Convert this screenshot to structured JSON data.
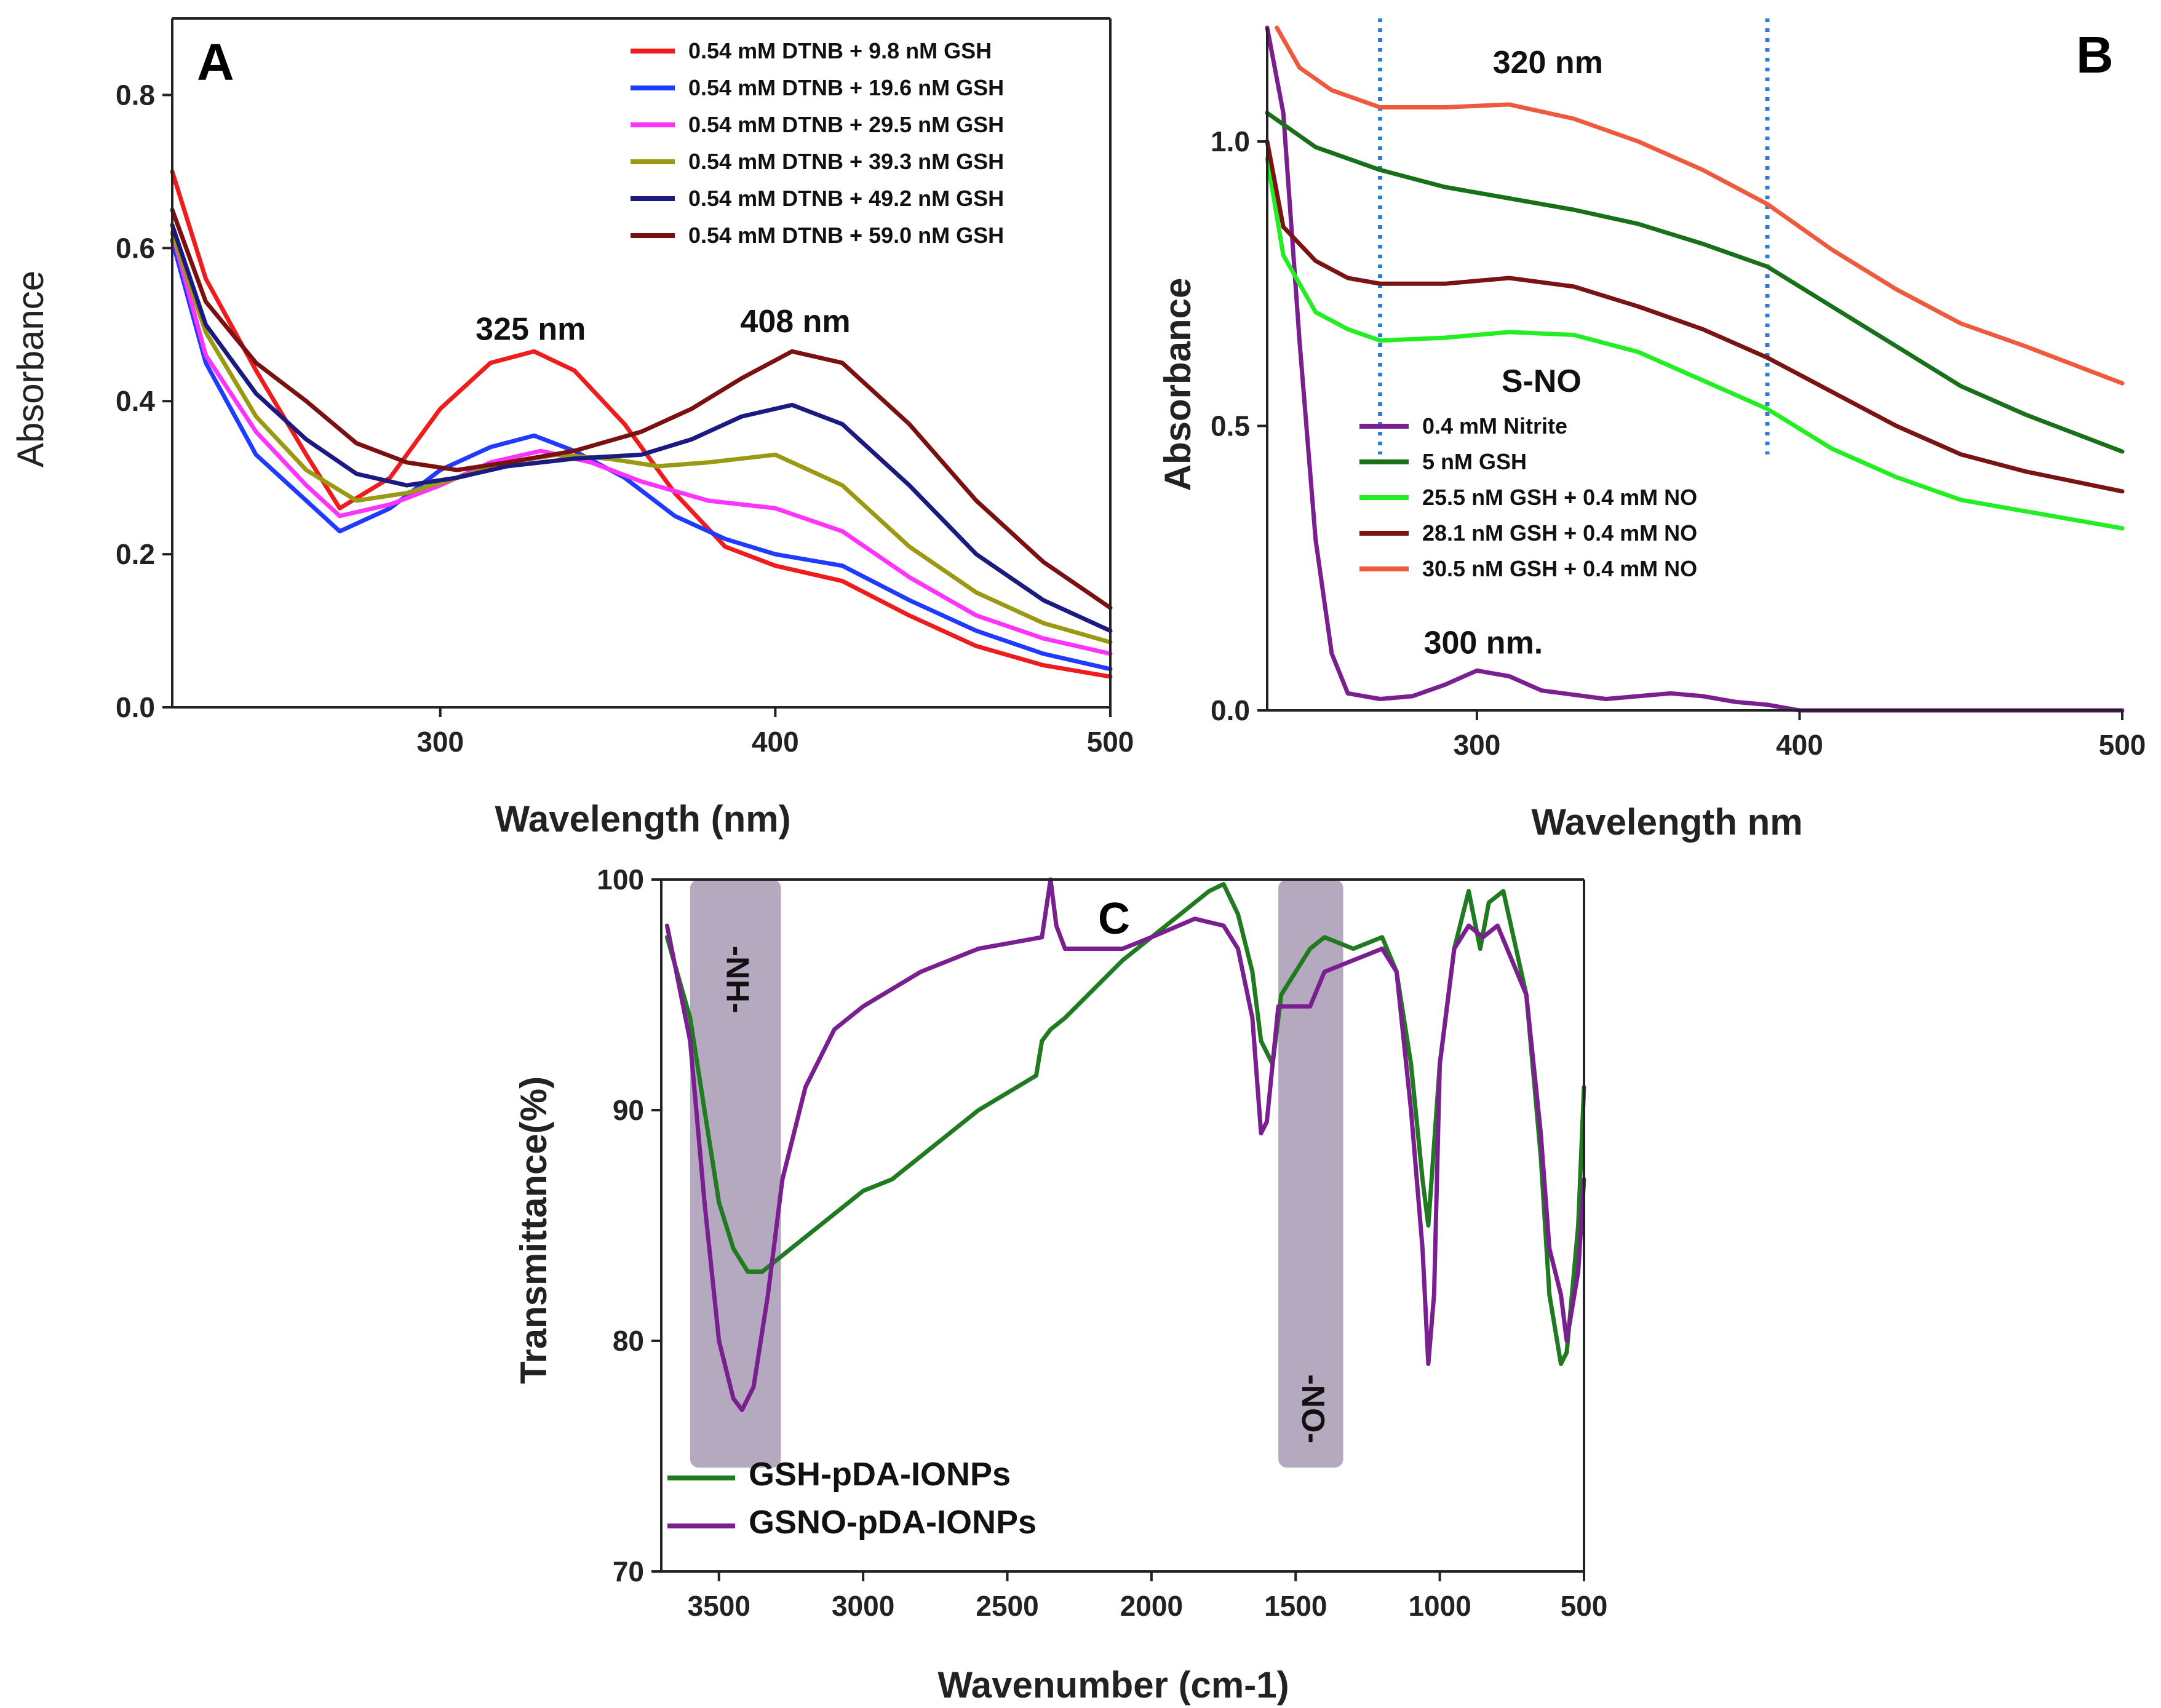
{
  "chart_data": [
    {
      "panel": "A",
      "type": "line",
      "title": "",
      "xlabel": "Wavelength (nm)",
      "ylabel": "Absorbance",
      "xlim": [
        220,
        500
      ],
      "ylim": [
        0,
        0.9
      ],
      "xticks": [
        300,
        400,
        500
      ],
      "yticks": [
        0.0,
        0.2,
        0.4,
        0.6,
        0.8
      ],
      "ytick_labels": [
        "0.0",
        "0.2",
        "0.4",
        "0.6",
        "0.8"
      ],
      "legend_position": "top-right",
      "annotations": [
        {
          "text": "325 nm",
          "x": 327,
          "y": 0.48
        },
        {
          "text": "408 nm",
          "x": 406,
          "y": 0.49
        }
      ],
      "series": [
        {
          "name": "0.54 mM DTNB + 9.8 nM GSH",
          "color": "#ee1c1c",
          "x": [
            220,
            230,
            245,
            260,
            270,
            285,
            300,
            315,
            328,
            340,
            355,
            370,
            385,
            400,
            420,
            440,
            460,
            480,
            500
          ],
          "y": [
            0.7,
            0.56,
            0.44,
            0.33,
            0.26,
            0.3,
            0.39,
            0.45,
            0.465,
            0.44,
            0.37,
            0.28,
            0.21,
            0.185,
            0.165,
            0.12,
            0.08,
            0.055,
            0.04
          ]
        },
        {
          "name": "0.54 mM DTNB + 19.6 nM GSH",
          "color": "#1f3bff",
          "x": [
            220,
            230,
            245,
            260,
            270,
            285,
            300,
            315,
            328,
            340,
            355,
            370,
            385,
            400,
            420,
            440,
            460,
            480,
            500
          ],
          "y": [
            0.61,
            0.45,
            0.33,
            0.27,
            0.23,
            0.26,
            0.31,
            0.34,
            0.355,
            0.335,
            0.3,
            0.25,
            0.22,
            0.2,
            0.185,
            0.14,
            0.1,
            0.07,
            0.05
          ]
        },
        {
          "name": "0.54 mM DTNB + 29.5 nM GSH",
          "color": "#ff33ff",
          "x": [
            220,
            230,
            245,
            260,
            270,
            285,
            300,
            315,
            330,
            345,
            360,
            380,
            400,
            420,
            440,
            460,
            480,
            500
          ],
          "y": [
            0.62,
            0.46,
            0.36,
            0.29,
            0.25,
            0.265,
            0.29,
            0.32,
            0.335,
            0.32,
            0.295,
            0.27,
            0.26,
            0.23,
            0.17,
            0.12,
            0.09,
            0.07
          ]
        },
        {
          "name": "0.54 mM DTNB + 39.3 nM GSH",
          "color": "#9a9a12",
          "x": [
            220,
            230,
            245,
            260,
            275,
            290,
            305,
            320,
            335,
            350,
            365,
            380,
            400,
            420,
            440,
            460,
            480,
            500
          ],
          "y": [
            0.62,
            0.49,
            0.38,
            0.31,
            0.27,
            0.28,
            0.3,
            0.32,
            0.33,
            0.325,
            0.315,
            0.32,
            0.33,
            0.29,
            0.21,
            0.15,
            0.11,
            0.085
          ]
        },
        {
          "name": "0.54 mM DTNB + 49.2 nM GSH",
          "color": "#1a1a80",
          "x": [
            220,
            230,
            245,
            260,
            275,
            290,
            305,
            320,
            340,
            360,
            375,
            390,
            405,
            420,
            440,
            460,
            480,
            500
          ],
          "y": [
            0.63,
            0.5,
            0.41,
            0.35,
            0.305,
            0.29,
            0.3,
            0.315,
            0.325,
            0.33,
            0.35,
            0.38,
            0.395,
            0.37,
            0.29,
            0.2,
            0.14,
            0.1
          ]
        },
        {
          "name": "0.54 mM DTNB + 59.0 nM GSH",
          "color": "#7b1010",
          "x": [
            220,
            230,
            245,
            260,
            275,
            290,
            305,
            320,
            340,
            360,
            375,
            390,
            405,
            420,
            440,
            460,
            480,
            500
          ],
          "y": [
            0.65,
            0.53,
            0.45,
            0.4,
            0.345,
            0.32,
            0.31,
            0.32,
            0.335,
            0.36,
            0.39,
            0.43,
            0.465,
            0.45,
            0.37,
            0.27,
            0.19,
            0.13
          ]
        }
      ]
    },
    {
      "panel": "B",
      "type": "line",
      "title": "",
      "xlabel": "Wavelength nm",
      "ylabel": "Absorbance",
      "xlim": [
        235,
        500
      ],
      "ylim": [
        0,
        1.2
      ],
      "xticks": [
        300,
        400,
        500
      ],
      "yticks": [
        0.0,
        0.5,
        1.0
      ],
      "ytick_labels": [
        "0.0",
        "0.5",
        "1.0"
      ],
      "legend_position": "center-left",
      "vlines": [
        270,
        390
      ],
      "annotations": [
        {
          "text": "320 nm",
          "x": 322,
          "y": 1.12
        },
        {
          "text": "S-NO",
          "x": 320,
          "y": 0.56
        },
        {
          "text": "300 nm.",
          "x": 302,
          "y": 0.1
        }
      ],
      "series": [
        {
          "name": "0.4 mM Nitrite",
          "color": "#7a1f8f",
          "x": [
            235,
            240,
            245,
            250,
            255,
            260,
            270,
            280,
            290,
            300,
            310,
            320,
            340,
            360,
            370,
            380,
            390,
            400,
            450,
            500
          ],
          "y": [
            1.2,
            1.05,
            0.65,
            0.3,
            0.1,
            0.03,
            0.02,
            0.025,
            0.045,
            0.07,
            0.06,
            0.035,
            0.02,
            0.03,
            0.025,
            0.015,
            0.01,
            0.0,
            0.0,
            0.0
          ]
        },
        {
          "name": "5 nM GSH",
          "color": "#187018",
          "x": [
            235,
            250,
            270,
            290,
            310,
            330,
            350,
            370,
            390,
            410,
            430,
            450,
            470,
            500
          ],
          "y": [
            1.05,
            0.99,
            0.95,
            0.92,
            0.9,
            0.88,
            0.855,
            0.82,
            0.78,
            0.71,
            0.64,
            0.57,
            0.52,
            0.455
          ]
        },
        {
          "name": "25.5 nM GSH + 0.4 mM NO",
          "color": "#22ee22",
          "x": [
            235,
            240,
            250,
            260,
            270,
            290,
            310,
            330,
            350,
            370,
            390,
            410,
            430,
            450,
            470,
            500
          ],
          "y": [
            0.97,
            0.8,
            0.7,
            0.67,
            0.65,
            0.655,
            0.665,
            0.66,
            0.63,
            0.58,
            0.53,
            0.46,
            0.41,
            0.37,
            0.35,
            0.32
          ]
        },
        {
          "name": "28.1 nM GSH + 0.4 mM NO",
          "color": "#7a1414",
          "x": [
            235,
            240,
            250,
            260,
            270,
            290,
            310,
            330,
            350,
            370,
            390,
            410,
            430,
            450,
            470,
            500
          ],
          "y": [
            1.0,
            0.85,
            0.79,
            0.76,
            0.75,
            0.75,
            0.76,
            0.745,
            0.71,
            0.67,
            0.62,
            0.56,
            0.5,
            0.45,
            0.42,
            0.385
          ]
        },
        {
          "name": "30.5 nM GSH + 0.4 mM NO",
          "color": "#ee5a3e",
          "x": [
            238,
            245,
            255,
            270,
            290,
            310,
            330,
            350,
            370,
            390,
            410,
            430,
            450,
            470,
            500
          ],
          "y": [
            1.2,
            1.13,
            1.09,
            1.06,
            1.06,
            1.065,
            1.04,
            1.0,
            0.95,
            0.89,
            0.81,
            0.74,
            0.68,
            0.64,
            0.575
          ]
        }
      ]
    },
    {
      "panel": "C",
      "type": "line",
      "title": "",
      "xlabel": "Wavenumber (cm-1)",
      "ylabel": "Transmittance(%)",
      "xlim": [
        3700,
        500
      ],
      "ylim": [
        70,
        100
      ],
      "xticks": [
        3500,
        3000,
        2500,
        2000,
        1500,
        1000,
        500
      ],
      "yticks": [
        70,
        80,
        90,
        100
      ],
      "legend_position": "bottom-left",
      "shaded_bands": [
        {
          "label": "-NH-",
          "xmin": 3285,
          "xmax": 3600,
          "ymin": 74.5,
          "ymax": 100
        },
        {
          "label": "-NO-",
          "xmin": 1335,
          "xmax": 1560,
          "ymin": 74.5,
          "ymax": 100
        }
      ],
      "series": [
        {
          "name": "GSH-pDA-IONPs",
          "color": "#207a20",
          "x": [
            3680,
            3600,
            3550,
            3500,
            3450,
            3400,
            3350,
            3300,
            3250,
            3150,
            3000,
            2900,
            2800,
            2600,
            2400,
            2380,
            2350,
            2300,
            2100,
            1900,
            1800,
            1750,
            1700,
            1650,
            1620,
            1580,
            1550,
            1500,
            1450,
            1400,
            1300,
            1200,
            1150,
            1100,
            1060,
            1040,
            1000,
            950,
            900,
            860,
            830,
            780,
            700,
            650,
            620,
            580,
            560,
            520,
            500
          ],
          "y": [
            97.5,
            94,
            90,
            86,
            84,
            83,
            83,
            83.5,
            84,
            85,
            86.5,
            87,
            88,
            90,
            91.5,
            93,
            93.5,
            94,
            96.5,
            98.5,
            99.5,
            99.8,
            98.5,
            96,
            93,
            92,
            95,
            96,
            97,
            97.5,
            97,
            97.5,
            96,
            92,
            87,
            85,
            92,
            97,
            99.5,
            97,
            99,
            99.5,
            95,
            88,
            82,
            79,
            79.5,
            85,
            91
          ]
        },
        {
          "name": "GSNO-pDA-IONPs",
          "color": "#7a1f8f",
          "x": [
            3680,
            3600,
            3550,
            3500,
            3450,
            3420,
            3380,
            3330,
            3280,
            3200,
            3100,
            3000,
            2800,
            2600,
            2380,
            2350,
            2330,
            2300,
            2100,
            2000,
            1850,
            1750,
            1700,
            1650,
            1620,
            1600,
            1560,
            1500,
            1450,
            1400,
            1300,
            1200,
            1150,
            1100,
            1060,
            1040,
            1020,
            1000,
            950,
            900,
            850,
            800,
            700,
            650,
            620,
            580,
            560,
            520,
            500
          ],
          "y": [
            98,
            93,
            86,
            80,
            77.5,
            77,
            78,
            82,
            87,
            91,
            93.5,
            94.5,
            96,
            97,
            97.5,
            100,
            98,
            97,
            97,
            97.5,
            98.3,
            98,
            97,
            94,
            89,
            89.5,
            94.5,
            94.5,
            94.5,
            96,
            96.5,
            97,
            96,
            90,
            84,
            79,
            82,
            92,
            97,
            98,
            97.5,
            98,
            95,
            89,
            84,
            82,
            80,
            83,
            87
          ]
        }
      ]
    }
  ]
}
